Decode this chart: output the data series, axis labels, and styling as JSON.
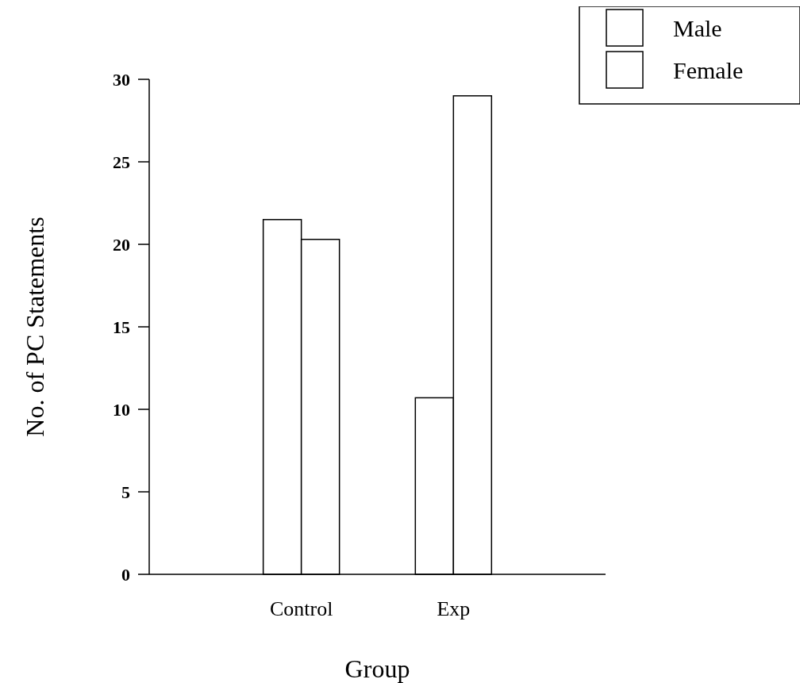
{
  "chart_data": {
    "type": "bar",
    "xlabel": "Group",
    "ylabel": "No. of PC Statements",
    "categories": [
      "Control",
      "Exp"
    ],
    "series": [
      {
        "name": "Male",
        "color": "#ffffff",
        "values": [
          21.5,
          10.7
        ]
      },
      {
        "name": "Female",
        "color": "#ffffff",
        "values": [
          20.3,
          29.0
        ]
      }
    ],
    "ylim": [
      0,
      30
    ],
    "yticks": [
      0,
      5,
      10,
      15,
      20,
      25,
      30
    ],
    "legend": "top right",
    "grid": false
  }
}
